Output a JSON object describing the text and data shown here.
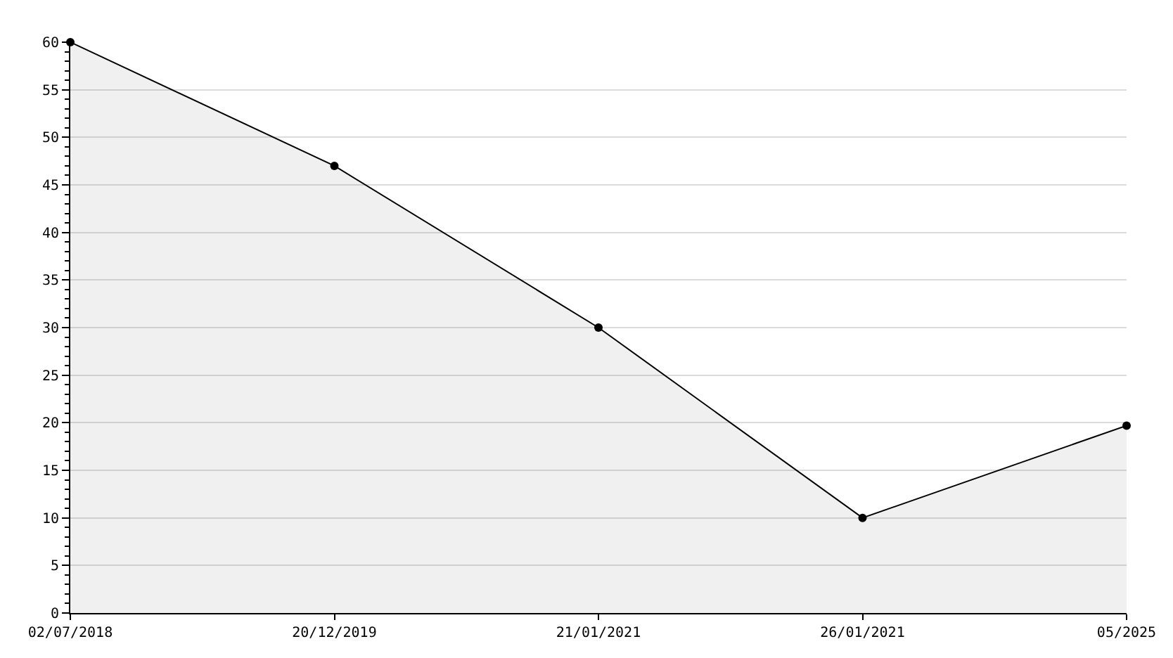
{
  "chart_data": {
    "type": "area",
    "categories": [
      "02/07/2018",
      "20/12/2019",
      "21/01/2021",
      "26/01/2021",
      "05/2025"
    ],
    "series": [
      {
        "color": "#000000",
        "values": [
          60,
          47,
          30,
          10,
          19.7
        ]
      }
    ],
    "ylim": [
      0,
      60
    ],
    "yticks": [
      0,
      5,
      10,
      15,
      20,
      25,
      30,
      35,
      40,
      45,
      50,
      55,
      60
    ],
    "grid": "y",
    "legend": false,
    "marker": "circle",
    "line_style": "solid"
  }
}
